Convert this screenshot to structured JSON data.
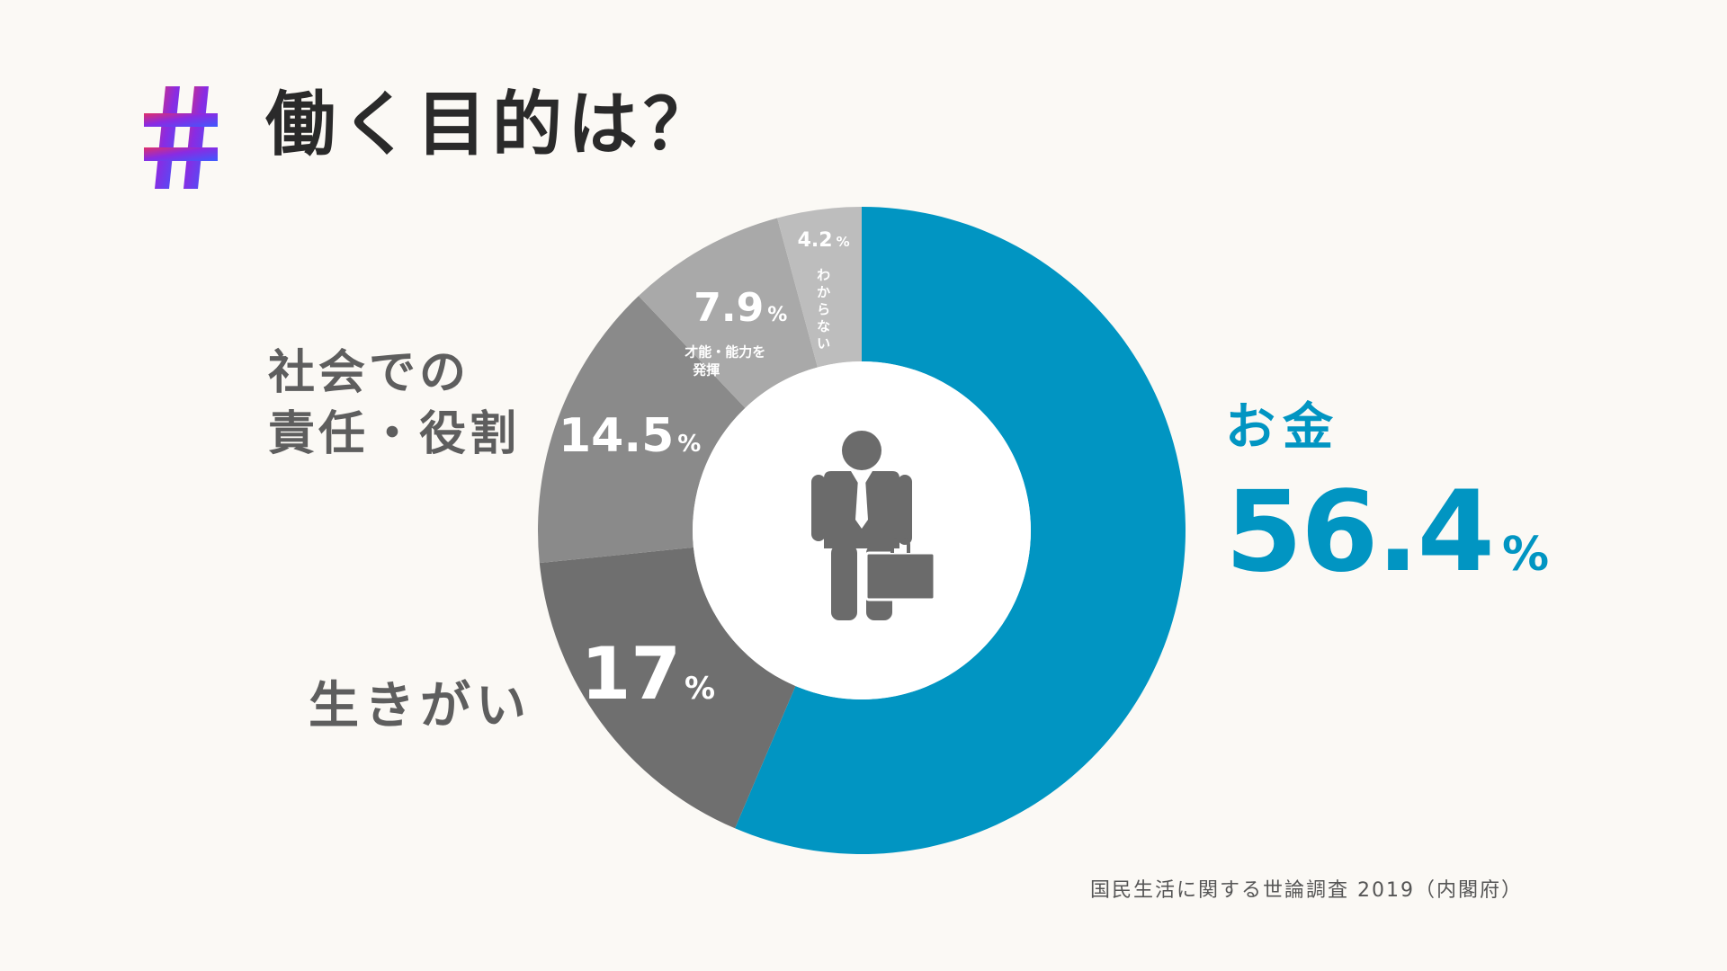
{
  "header": {
    "hash_icon": "hashtag-icon",
    "title": "働く目的は？"
  },
  "figure_icon": "businessman-with-briefcase-icon",
  "source": "国民生活に関する世論調査 2019（内閣府）",
  "colors": {
    "background": "#fbf9f5",
    "money": "#0195c2",
    "ikigai": "#6f6f6f",
    "society": "#8a8a8a",
    "talent": "#a9a9a9",
    "unknown": "#bdbdbd",
    "inner": "#ffffff",
    "icon": "#6b6b6b",
    "outside_label": "#5e5e5e"
  },
  "chart_data": {
    "type": "pie",
    "donut": true,
    "start_angle_deg": 0,
    "direction": "clockwise",
    "percent_suffix": "%",
    "slices": [
      {
        "label": "お金",
        "value": 56.4,
        "value_text": "56.4",
        "color": "#0195c2"
      },
      {
        "label": "生きがい",
        "value": 17.0,
        "value_text": "17",
        "color": "#6f6f6f"
      },
      {
        "label": "社会での責任・役割",
        "label_lines": [
          "社会での",
          "責任・役割"
        ],
        "value": 14.5,
        "value_text": "14.5",
        "color": "#8a8a8a"
      },
      {
        "label": "才能・能力を発揮",
        "label_lines": [
          "才能・能力を",
          "発揮"
        ],
        "value": 7.9,
        "value_text": "7.9",
        "color": "#a9a9a9"
      },
      {
        "label": "わからない",
        "value": 4.2,
        "value_text": "4.2",
        "color": "#bdbdbd"
      }
    ]
  }
}
